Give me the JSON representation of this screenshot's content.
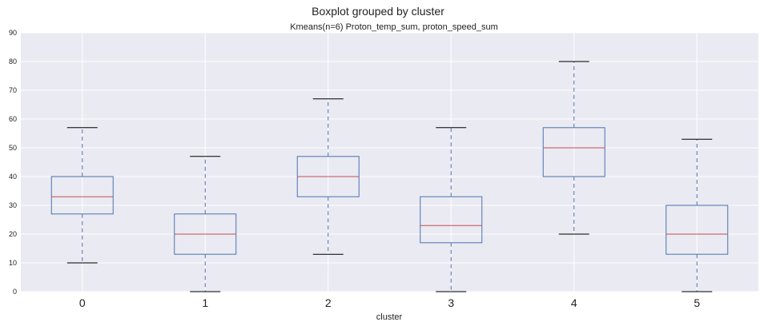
{
  "chart_data": {
    "type": "boxplot",
    "suptitle": "Boxplot grouped by cluster",
    "title": "Kmeans(n=6) Proton_temp_sum, proton_speed_sum",
    "xlabel": "cluster",
    "ylabel": "",
    "ylim": [
      0,
      90
    ],
    "yticks": [
      "0",
      "10",
      "20",
      "30",
      "40",
      "50",
      "60",
      "70",
      "80",
      "90"
    ],
    "categories": [
      "0",
      "1",
      "2",
      "3",
      "4",
      "5"
    ],
    "boxes": [
      {
        "category": "0",
        "whisker_low": 10,
        "q1": 27,
        "median": 33,
        "q3": 40,
        "whisker_high": 57
      },
      {
        "category": "1",
        "whisker_low": 0,
        "q1": 13,
        "median": 20,
        "q3": 27,
        "whisker_high": 47
      },
      {
        "category": "2",
        "whisker_low": 13,
        "q1": 33,
        "median": 40,
        "q3": 47,
        "whisker_high": 67
      },
      {
        "category": "3",
        "whisker_low": 0,
        "q1": 17,
        "median": 23,
        "q3": 33,
        "whisker_high": 57
      },
      {
        "category": "4",
        "whisker_low": 20,
        "q1": 40,
        "median": 50,
        "q3": 57,
        "whisker_high": 80
      },
      {
        "category": "5",
        "whisker_low": 0,
        "q1": 13,
        "median": 20,
        "q3": 30,
        "whisker_high": 53
      }
    ],
    "grid": true,
    "colors": {
      "background": "#eaeaf2",
      "grid": "#ffffff",
      "box": "#4c72b0",
      "median": "#c44e52",
      "cap": "#000000",
      "whisker": "#4c72b0"
    }
  }
}
